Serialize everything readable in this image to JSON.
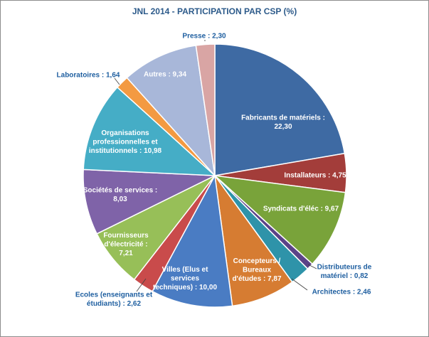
{
  "chart_data": {
    "type": "pie",
    "title": "JNL 2014 - PARTICIPATION PAR CSP (%)",
    "slices": [
      {
        "label": [
          "Fabricants de matériels :",
          "22,30"
        ],
        "value": 22.3,
        "color": "#3e6aa3"
      },
      {
        "label": [
          "Installateurs : 4,75"
        ],
        "value": 4.75,
        "color": "#a33d3a"
      },
      {
        "label": [
          "Syndicats d'éléc : 9,67"
        ],
        "value": 9.67,
        "color": "#79a33a"
      },
      {
        "label": [
          "Distributeurs de",
          "matériel : 0,82"
        ],
        "value": 0.82,
        "color": "#5b4288"
      },
      {
        "label": [
          "Architectes : 2,46"
        ],
        "value": 2.46,
        "color": "#2e93a9"
      },
      {
        "label": [
          "Concepteurs /",
          "Bureaux",
          "d'études : 7,87"
        ],
        "value": 7.87,
        "color": "#d67c32"
      },
      {
        "label": [
          "Villes (Elus et",
          "services",
          "techniques) : 10,00"
        ],
        "value": 10.0,
        "color": "#4a7cc3"
      },
      {
        "label": [
          "Ecoles (enseignants et",
          "étudiants) : 2,62"
        ],
        "value": 2.62,
        "color": "#c94b4b"
      },
      {
        "label": [
          "Fournisseurs",
          "d'électricité :",
          "7,21"
        ],
        "value": 7.21,
        "color": "#97bf58"
      },
      {
        "label": [
          "Sociétés de services :",
          "8,03"
        ],
        "value": 8.03,
        "color": "#7f63a8"
      },
      {
        "label": [
          "Organisations",
          "professionnelles et",
          "institutionnels : 10,98"
        ],
        "value": 10.98,
        "color": "#45adc6"
      },
      {
        "label": [
          "Laboratoires : 1,64"
        ],
        "value": 1.64,
        "color": "#f39a42"
      },
      {
        "label": [
          "Autres : 9,34"
        ],
        "value": 9.34,
        "color": "#a8b7d9"
      },
      {
        "label": [
          "Presse : 2,30"
        ],
        "value": 2.3,
        "color": "#d9a5a4"
      }
    ]
  }
}
